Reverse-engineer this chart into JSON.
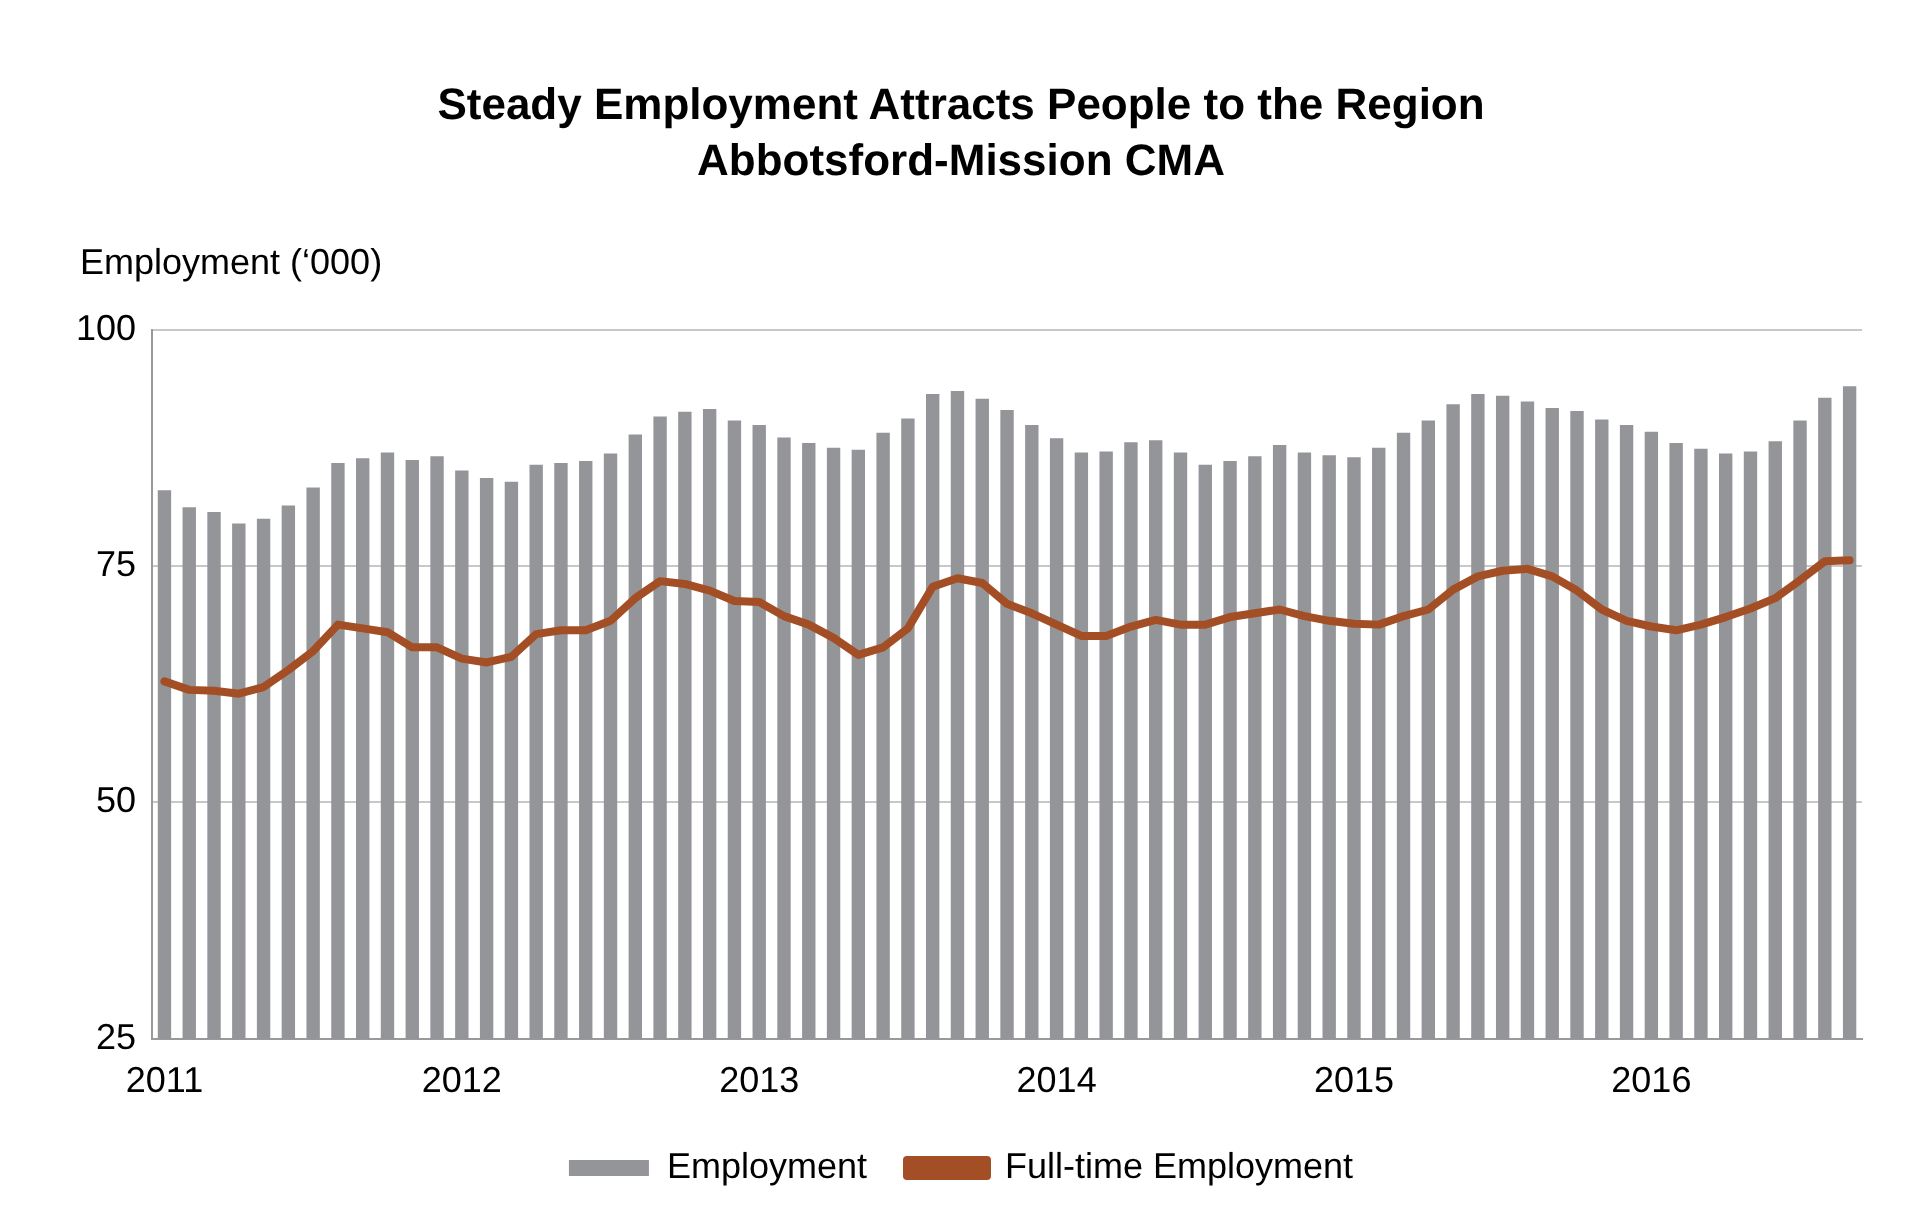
{
  "chart_data": {
    "type": "bar",
    "title": "Steady Employment Attracts People to the Region",
    "subtitle": "Abbotsford-Mission CMA",
    "ylabel": "Employment (‘000)",
    "categories": [
      "2011",
      null,
      null,
      null,
      null,
      null,
      null,
      null,
      null,
      null,
      null,
      null,
      "2012",
      null,
      null,
      null,
      null,
      null,
      null,
      null,
      null,
      null,
      null,
      null,
      "2013",
      null,
      null,
      null,
      null,
      null,
      null,
      null,
      null,
      null,
      null,
      null,
      "2014",
      null,
      null,
      null,
      null,
      null,
      null,
      null,
      null,
      null,
      null,
      null,
      "2015",
      null,
      null,
      null,
      null,
      null,
      null,
      null,
      null,
      null,
      null,
      null,
      "2016",
      null,
      null,
      null,
      null,
      null,
      null,
      null,
      null
    ],
    "series": [
      {
        "name": "Employment",
        "color": "#939598",
        "values": [
          83.0,
          81.2,
          80.7,
          79.5,
          80.0,
          81.4,
          83.3,
          85.9,
          86.4,
          87.0,
          86.2,
          86.6,
          85.1,
          84.3,
          83.9,
          85.7,
          85.9,
          86.1,
          86.9,
          88.9,
          90.8,
          91.3,
          91.6,
          90.4,
          89.9,
          88.6,
          88.0,
          87.5,
          87.3,
          89.1,
          90.6,
          93.2,
          93.5,
          92.7,
          91.5,
          89.9,
          88.5,
          87.0,
          87.1,
          88.1,
          88.3,
          87.0,
          85.7,
          86.1,
          86.6,
          87.8,
          87.0,
          86.7,
          86.5,
          87.5,
          89.1,
          90.4,
          92.1,
          93.2,
          93.0,
          92.4,
          91.7,
          91.4,
          90.5,
          89.9,
          89.2,
          88.0,
          87.4,
          86.9,
          87.1,
          88.2,
          90.4,
          92.8,
          94.0
        ]
      },
      {
        "name": "Full-time Employment",
        "type": "line",
        "color": "#a34e24",
        "values": [
          62.8,
          61.9,
          61.8,
          61.5,
          62.2,
          64.0,
          66.0,
          68.8,
          68.4,
          68.0,
          66.4,
          66.4,
          65.2,
          64.8,
          65.4,
          67.8,
          68.2,
          68.2,
          69.2,
          71.6,
          73.4,
          73.1,
          72.4,
          71.3,
          71.2,
          69.7,
          68.8,
          67.4,
          65.6,
          66.4,
          68.4,
          72.8,
          73.7,
          73.2,
          71.0,
          70.0,
          68.8,
          67.6,
          67.6,
          68.6,
          69.3,
          68.8,
          68.8,
          69.6,
          70.0,
          70.4,
          69.7,
          69.2,
          68.9,
          68.8,
          69.7,
          70.4,
          72.5,
          73.9,
          74.5,
          74.7,
          73.9,
          72.4,
          70.4,
          69.2,
          68.6,
          68.2,
          68.8,
          69.6,
          70.5,
          71.6,
          73.5,
          75.5,
          75.6
        ]
      }
    ],
    "ylim": [
      25,
      100
    ],
    "yticks": [
      25,
      50,
      75,
      100
    ],
    "grid": "y",
    "legend": "bottom",
    "marker": "none",
    "line_style": "solid"
  }
}
